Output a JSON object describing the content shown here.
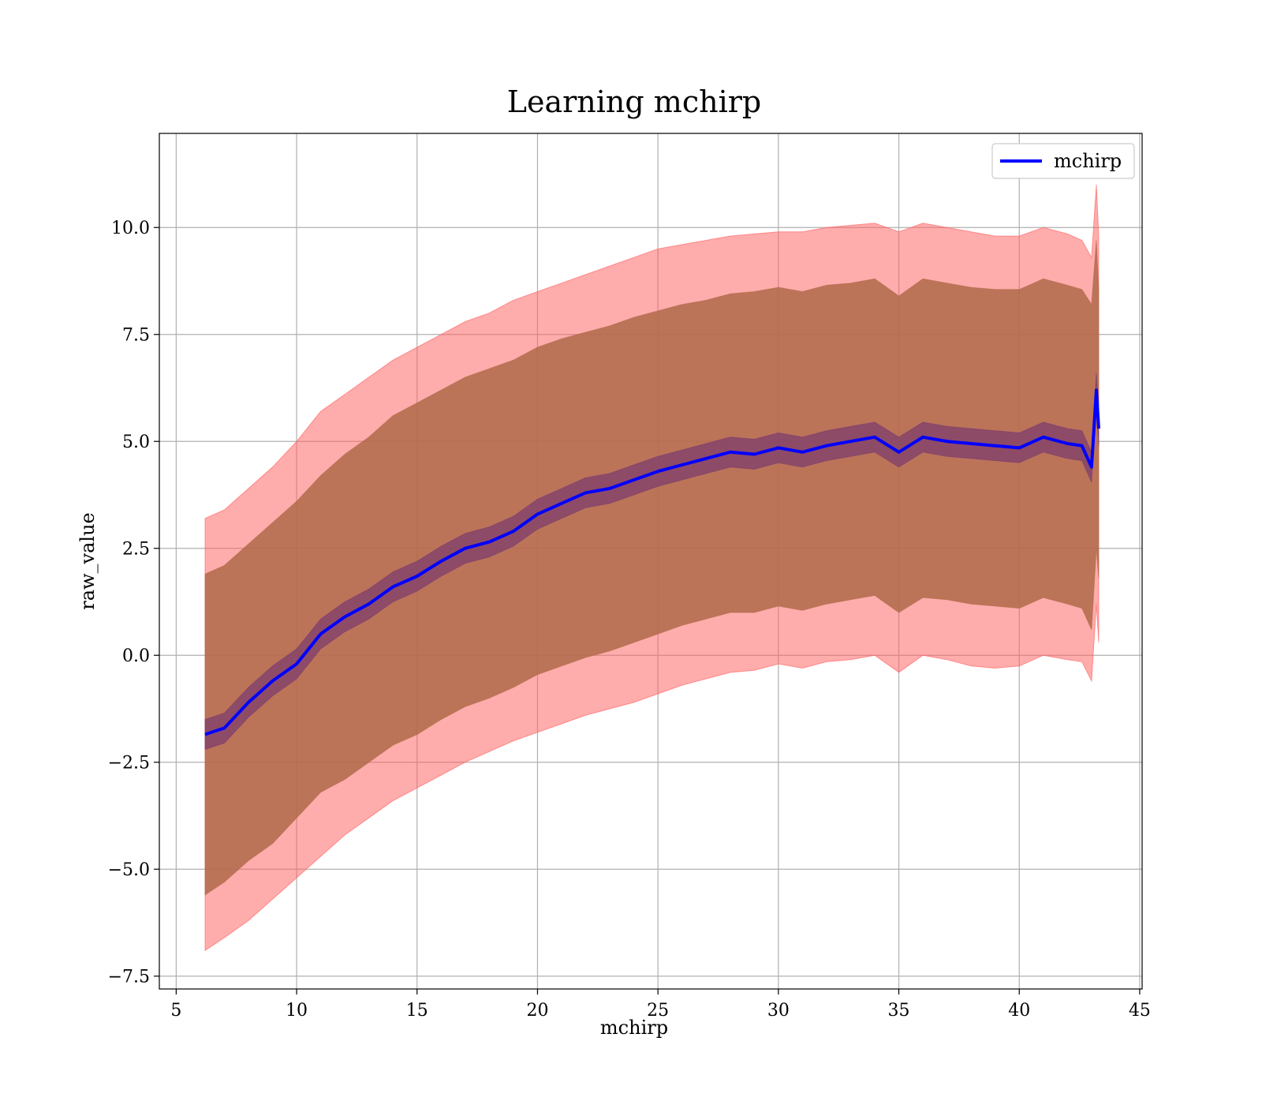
{
  "chart_data": {
    "type": "line",
    "title": "Learning mchirp",
    "xlabel": "mchirp",
    "ylabel": "raw_value",
    "xlim": [
      4.3,
      45.1
    ],
    "ylim": [
      -7.8,
      12.2
    ],
    "xticks": [
      5,
      10,
      15,
      20,
      25,
      30,
      35,
      40,
      45
    ],
    "xtick_labels": [
      "5",
      "10",
      "15",
      "20",
      "25",
      "30",
      "35",
      "40",
      "45"
    ],
    "yticks": [
      -7.5,
      -5.0,
      -2.5,
      0.0,
      2.5,
      5.0,
      7.5,
      10.0
    ],
    "ytick_labels": [
      "−7.5",
      "−5.0",
      "−2.5",
      "0.0",
      "2.5",
      "5.0",
      "7.5",
      "10.0"
    ],
    "grid": true,
    "legend_position": "top-right",
    "colors": {
      "line": "#0000ff",
      "inner_band": "#7b3a6e",
      "middle_band": "#b06a4a",
      "outer_band": "#ff5a5a",
      "grid": "#b0b0b0"
    },
    "series": [
      {
        "name": "mchirp",
        "x": [
          6.2,
          7.0,
          8.0,
          9.0,
          10.0,
          11.0,
          12.0,
          13.0,
          14.0,
          15.0,
          16.0,
          17.0,
          18.0,
          19.0,
          20.0,
          21.0,
          22.0,
          23.0,
          24.0,
          25.0,
          26.0,
          27.0,
          28.0,
          29.0,
          30.0,
          31.0,
          32.0,
          33.0,
          34.0,
          35.0,
          36.0,
          37.0,
          38.0,
          39.0,
          40.0,
          41.0,
          42.0,
          42.6,
          43.0,
          43.2,
          43.3
        ],
        "y": [
          -1.85,
          -1.7,
          -1.1,
          -0.6,
          -0.2,
          0.5,
          0.9,
          1.2,
          1.6,
          1.85,
          2.2,
          2.5,
          2.65,
          2.9,
          3.3,
          3.55,
          3.8,
          3.9,
          4.1,
          4.3,
          4.45,
          4.6,
          4.75,
          4.7,
          4.85,
          4.75,
          4.9,
          5.0,
          5.1,
          4.75,
          5.1,
          5.0,
          4.95,
          4.9,
          4.85,
          5.1,
          4.95,
          4.9,
          4.4,
          6.2,
          5.3
        ]
      }
    ],
    "bands": [
      {
        "role": "outer",
        "x": [
          6.2,
          7.0,
          8.0,
          9.0,
          10.0,
          11.0,
          12.0,
          13.0,
          14.0,
          15.0,
          16.0,
          17.0,
          18.0,
          19.0,
          20.0,
          21.0,
          22.0,
          23.0,
          24.0,
          25.0,
          26.0,
          27.0,
          28.0,
          29.0,
          30.0,
          31.0,
          32.0,
          33.0,
          34.0,
          35.0,
          36.0,
          37.0,
          38.0,
          39.0,
          40.0,
          41.0,
          42.0,
          42.6,
          43.0,
          43.2,
          43.3
        ],
        "upper": [
          3.2,
          3.4,
          3.9,
          4.4,
          5.0,
          5.7,
          6.1,
          6.5,
          6.9,
          7.2,
          7.5,
          7.8,
          8.0,
          8.3,
          8.5,
          8.7,
          8.9,
          9.1,
          9.3,
          9.5,
          9.6,
          9.7,
          9.8,
          9.85,
          9.9,
          9.9,
          10.0,
          10.05,
          10.1,
          9.9,
          10.1,
          10.0,
          9.9,
          9.8,
          9.8,
          10.0,
          9.85,
          9.7,
          9.3,
          11.0,
          9.8
        ],
        "lower": [
          -6.9,
          -6.6,
          -6.2,
          -5.7,
          -5.2,
          -4.7,
          -4.2,
          -3.8,
          -3.4,
          -3.1,
          -2.8,
          -2.5,
          -2.25,
          -2.0,
          -1.8,
          -1.6,
          -1.4,
          -1.25,
          -1.1,
          -0.9,
          -0.7,
          -0.55,
          -0.4,
          -0.35,
          -0.2,
          -0.3,
          -0.15,
          -0.1,
          0.0,
          -0.4,
          0.0,
          -0.1,
          -0.25,
          -0.3,
          -0.25,
          0.0,
          -0.1,
          -0.15,
          -0.6,
          1.2,
          0.3
        ]
      },
      {
        "role": "middle",
        "x": [
          6.2,
          7.0,
          8.0,
          9.0,
          10.0,
          11.0,
          12.0,
          13.0,
          14.0,
          15.0,
          16.0,
          17.0,
          18.0,
          19.0,
          20.0,
          21.0,
          22.0,
          23.0,
          24.0,
          25.0,
          26.0,
          27.0,
          28.0,
          29.0,
          30.0,
          31.0,
          32.0,
          33.0,
          34.0,
          35.0,
          36.0,
          37.0,
          38.0,
          39.0,
          40.0,
          41.0,
          42.0,
          42.6,
          43.0,
          43.2,
          43.3
        ],
        "upper": [
          1.9,
          2.1,
          2.6,
          3.1,
          3.6,
          4.2,
          4.7,
          5.1,
          5.6,
          5.9,
          6.2,
          6.5,
          6.7,
          6.9,
          7.2,
          7.4,
          7.55,
          7.7,
          7.9,
          8.05,
          8.2,
          8.3,
          8.45,
          8.5,
          8.6,
          8.5,
          8.65,
          8.7,
          8.8,
          8.4,
          8.8,
          8.7,
          8.6,
          8.55,
          8.55,
          8.8,
          8.65,
          8.55,
          8.2,
          9.7,
          8.5
        ],
        "lower": [
          -5.6,
          -5.3,
          -4.8,
          -4.4,
          -3.8,
          -3.2,
          -2.9,
          -2.5,
          -2.1,
          -1.85,
          -1.5,
          -1.2,
          -1.0,
          -0.75,
          -0.45,
          -0.25,
          -0.05,
          0.1,
          0.3,
          0.5,
          0.7,
          0.85,
          1.0,
          1.0,
          1.15,
          1.05,
          1.2,
          1.3,
          1.4,
          1.0,
          1.35,
          1.3,
          1.2,
          1.15,
          1.1,
          1.35,
          1.2,
          1.1,
          0.6,
          2.5,
          1.8
        ]
      },
      {
        "role": "inner",
        "x": [
          6.2,
          7.0,
          8.0,
          9.0,
          10.0,
          11.0,
          12.0,
          13.0,
          14.0,
          15.0,
          16.0,
          17.0,
          18.0,
          19.0,
          20.0,
          21.0,
          22.0,
          23.0,
          24.0,
          25.0,
          26.0,
          27.0,
          28.0,
          29.0,
          30.0,
          31.0,
          32.0,
          33.0,
          34.0,
          35.0,
          36.0,
          37.0,
          38.0,
          39.0,
          40.0,
          41.0,
          42.0,
          42.6,
          43.0,
          43.2,
          43.3
        ],
        "upper": [
          -1.5,
          -1.35,
          -0.75,
          -0.25,
          0.15,
          0.85,
          1.25,
          1.55,
          1.95,
          2.2,
          2.55,
          2.85,
          3.0,
          3.25,
          3.65,
          3.9,
          4.15,
          4.25,
          4.45,
          4.65,
          4.8,
          4.95,
          5.1,
          5.05,
          5.2,
          5.1,
          5.25,
          5.35,
          5.45,
          5.1,
          5.45,
          5.35,
          5.3,
          5.25,
          5.2,
          5.45,
          5.3,
          5.25,
          4.75,
          6.6,
          5.7
        ],
        "lower": [
          -2.2,
          -2.05,
          -1.45,
          -0.95,
          -0.55,
          0.15,
          0.55,
          0.85,
          1.25,
          1.5,
          1.85,
          2.15,
          2.3,
          2.55,
          2.95,
          3.2,
          3.45,
          3.55,
          3.75,
          3.95,
          4.1,
          4.25,
          4.4,
          4.35,
          4.5,
          4.4,
          4.55,
          4.65,
          4.75,
          4.4,
          4.75,
          4.65,
          4.6,
          4.55,
          4.5,
          4.75,
          4.6,
          4.55,
          4.05,
          5.8,
          4.9
        ]
      }
    ]
  }
}
